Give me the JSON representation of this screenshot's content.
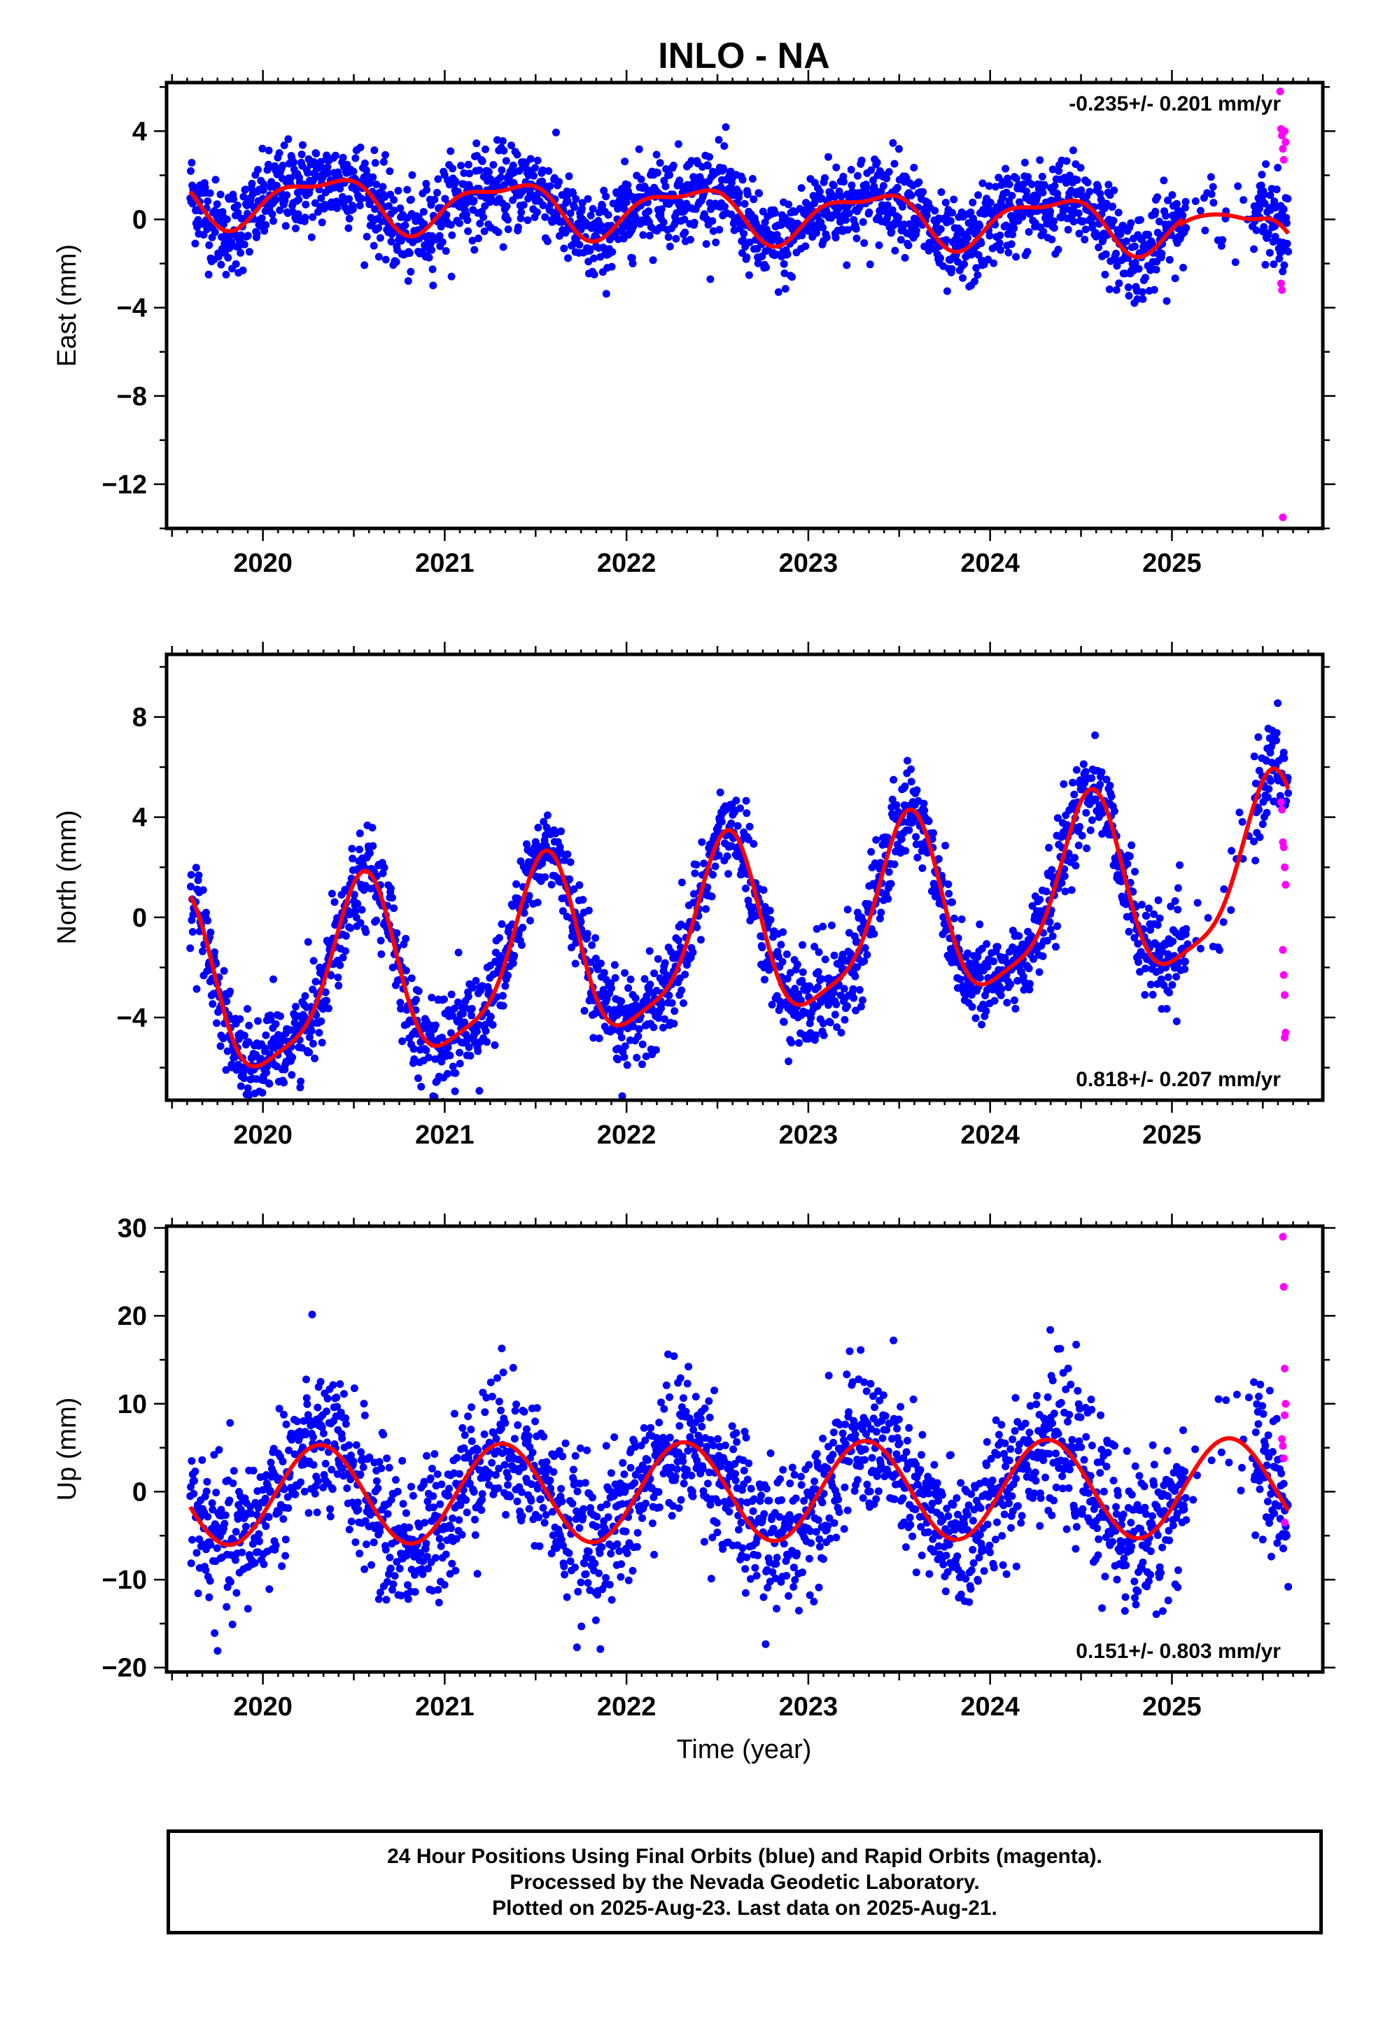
{
  "title": "INLO - NA",
  "xlabel": "Time (year)",
  "caption": [
    "24 Hour Positions Using Final Orbits (blue) and Rapid Orbits (magenta).",
    "Processed by the Nevada Geodetic Laboratory.",
    "Plotted on 2025-Aug-23. Last data on 2025-Aug-21."
  ],
  "colors": {
    "final": "#0000ff",
    "rapid": "#ff00ff",
    "model": "#ff0000",
    "frame": "#000000"
  },
  "chart_data": [
    {
      "type": "scatter",
      "name": "east",
      "ylabel": "East (mm)",
      "rate": "-0.235+/- 0.201 mm/yr",
      "rate_position": "top-right",
      "xlim": [
        2019.47,
        2025.83
      ],
      "ylim": [
        -14,
        6.2
      ],
      "xticks": [
        2020,
        2021,
        2022,
        2023,
        2024,
        2025
      ],
      "yticks": [
        4,
        0,
        -4,
        -8,
        -12
      ],
      "ytick_labels": [
        "4",
        "0",
        "−4",
        "−8",
        "−12"
      ],
      "model": {
        "t0": 2019.6,
        "t_end": 2025.64,
        "offset": 0.35,
        "rate": -0.235,
        "annual_cos": -0.55,
        "annual_sin": 0.95,
        "semi_cos": 0.35,
        "semi_sin": 0.25,
        "segments": [
          {
            "start": 2025.05,
            "end": 2025.64,
            "bump": [
              [
                2025.1,
                -0.2
              ],
              [
                2025.45,
                -0.6
              ]
            ]
          }
        ]
      },
      "final_noise_sd": 1.0,
      "rapid_points": [
        {
          "t": 2025.595,
          "y": 5.8
        },
        {
          "t": 2025.6,
          "y": 4.1
        },
        {
          "t": 2025.605,
          "y": 3.8
        },
        {
          "t": 2025.61,
          "y": 3.2
        },
        {
          "t": 2025.615,
          "y": 2.7
        },
        {
          "t": 2025.62,
          "y": 4.0
        },
        {
          "t": 2025.625,
          "y": 3.5
        },
        {
          "t": 2025.6,
          "y": -2.9
        },
        {
          "t": 2025.605,
          "y": -3.2
        },
        {
          "t": 2025.61,
          "y": -13.5
        }
      ]
    },
    {
      "type": "scatter",
      "name": "north",
      "ylabel": "North (mm)",
      "rate": "0.818+/- 0.207 mm/yr",
      "rate_position": "bottom-right",
      "xlim": [
        2019.47,
        2025.83
      ],
      "ylim": [
        -7.3,
        10.5
      ],
      "xticks": [
        2020,
        2021,
        2022,
        2023,
        2024,
        2025
      ],
      "yticks": [
        8,
        4,
        0,
        -4
      ],
      "ytick_labels": [
        "8",
        "4",
        "0",
        "−4"
      ],
      "model": {
        "t0": 2019.6,
        "t_end": 2025.64,
        "offset": -0.9,
        "rate": 0.818,
        "annual_cos": -3.4,
        "annual_sin": -0.9,
        "semi_cos": 0.5,
        "semi_sin": 0.7,
        "segments": []
      },
      "final_noise_sd": 0.95,
      "rapid_points": [
        {
          "t": 2025.6,
          "y": 4.6
        },
        {
          "t": 2025.605,
          "y": 4.3
        },
        {
          "t": 2025.61,
          "y": 3.0
        },
        {
          "t": 2025.615,
          "y": 2.8
        },
        {
          "t": 2025.62,
          "y": 2.0
        },
        {
          "t": 2025.625,
          "y": 1.3
        },
        {
          "t": 2025.61,
          "y": -1.3
        },
        {
          "t": 2025.615,
          "y": -2.3
        },
        {
          "t": 2025.62,
          "y": -3.1
        },
        {
          "t": 2025.625,
          "y": -4.6
        },
        {
          "t": 2025.62,
          "y": -4.8
        }
      ]
    },
    {
      "type": "scatter",
      "name": "up",
      "ylabel": "Up (mm)",
      "rate": "0.151+/- 0.803 mm/yr",
      "rate_position": "bottom-right",
      "xlim": [
        2019.47,
        2025.83
      ],
      "ylim": [
        -20.5,
        30.2
      ],
      "xticks": [
        2020,
        2021,
        2022,
        2023,
        2024,
        2025
      ],
      "yticks": [
        30,
        20,
        10,
        0,
        -10,
        -20
      ],
      "ytick_labels": [
        "30",
        "20",
        "10",
        "0",
        "−10",
        "−20"
      ],
      "model": {
        "t0": 2019.6,
        "t_end": 2025.64,
        "offset": 0.0,
        "rate": 0.151,
        "annual_cos": -2.2,
        "annual_sin": 5.2,
        "semi_cos": 0.0,
        "semi_sin": 0.0,
        "segments": []
      },
      "final_noise_sd": 4.2,
      "rapid_points": [
        {
          "t": 2025.61,
          "y": 29.0
        },
        {
          "t": 2025.615,
          "y": 23.3
        },
        {
          "t": 2025.62,
          "y": 14.0
        },
        {
          "t": 2025.625,
          "y": 10.0
        },
        {
          "t": 2025.62,
          "y": 8.7
        },
        {
          "t": 2025.605,
          "y": 6.0
        },
        {
          "t": 2025.61,
          "y": 5.2
        },
        {
          "t": 2025.615,
          "y": 3.8
        },
        {
          "t": 2025.62,
          "y": -3.5
        }
      ]
    }
  ]
}
